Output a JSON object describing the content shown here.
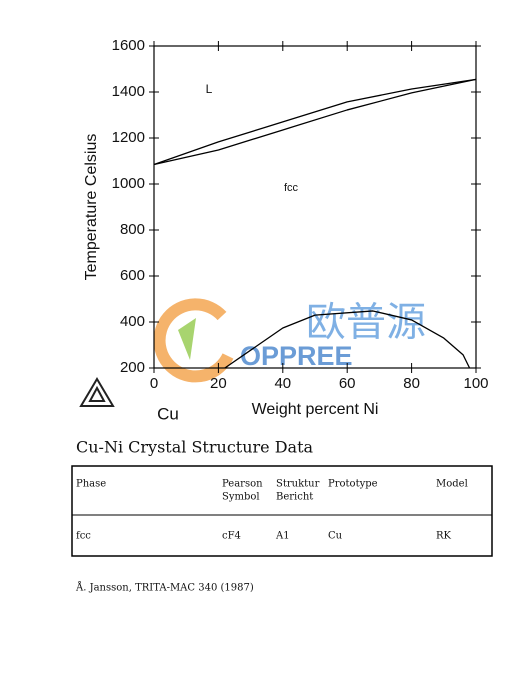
{
  "chart_data": {
    "type": "line",
    "x_label": "Weight percent Ni",
    "y_label": "Temperature Celsius",
    "annotations": [
      "L",
      "fcc",
      "Cu"
    ],
    "series": [
      {
        "color": "#000000",
        "x": [
          0,
          20,
          40,
          60,
          80,
          100
        ],
        "values": [
          1085,
          1183,
          1270,
          1357,
          1413,
          1455
        ]
      },
      {
        "color": "#000000",
        "x": [
          0,
          20,
          40,
          60,
          80,
          100
        ],
        "values": [
          1085,
          1148,
          1235,
          1322,
          1396,
          1455
        ]
      },
      {
        "color": "#000000",
        "x": [
          22,
          40,
          50,
          68,
          80,
          90,
          96,
          98
        ],
        "values": [
          200,
          374,
          430,
          448,
          409,
          330,
          257,
          200
        ]
      }
    ],
    "xlim": [
      0,
      100
    ],
    "xticks": [
      0,
      20,
      40,
      60,
      80,
      100
    ],
    "ylim": [
      200,
      1600
    ],
    "yticks": [
      200,
      400,
      600,
      800,
      1000,
      1200,
      1400,
      1600
    ]
  },
  "table": {
    "title": "Cu-Ni Crystal Structure Data",
    "headers": [
      [
        "Phase"
      ],
      [
        "Pearson",
        "Symbol"
      ],
      [
        "Struktur",
        "Bericht"
      ],
      [
        "Prototype"
      ],
      [
        "Model"
      ]
    ],
    "rows": [
      [
        "fcc",
        "cF4",
        "A1",
        "Cu",
        "RK"
      ]
    ]
  },
  "reference": "Å. Jansson, TRITA-MAC 340 (1987)",
  "watermark": {
    "title": "欧普源",
    "subtitle": "OPPREE"
  }
}
